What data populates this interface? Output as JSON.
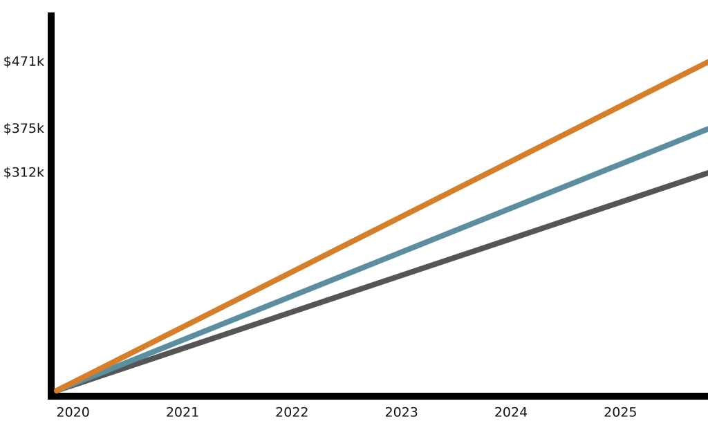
{
  "chart_data": {
    "type": "line",
    "x": [
      2019.85,
      2025.8
    ],
    "series": [
      {
        "color": "#d67f2a",
        "values": [
          0,
          471
        ]
      },
      {
        "color": "#5b8fa0",
        "values": [
          0,
          375
        ]
      },
      {
        "color": "#555555",
        "values": [
          0,
          312
        ]
      }
    ],
    "xlim": [
      2019.8,
      2025.8
    ],
    "xticks": [
      2020,
      2021,
      2022,
      2023,
      2024,
      2025
    ],
    "ylim": [
      0,
      540
    ],
    "yticks": [
      {
        "value": 471,
        "label": "$471k"
      },
      {
        "value": 375,
        "label": "$375k"
      },
      {
        "value": 312,
        "label": "$312k"
      }
    ]
  }
}
